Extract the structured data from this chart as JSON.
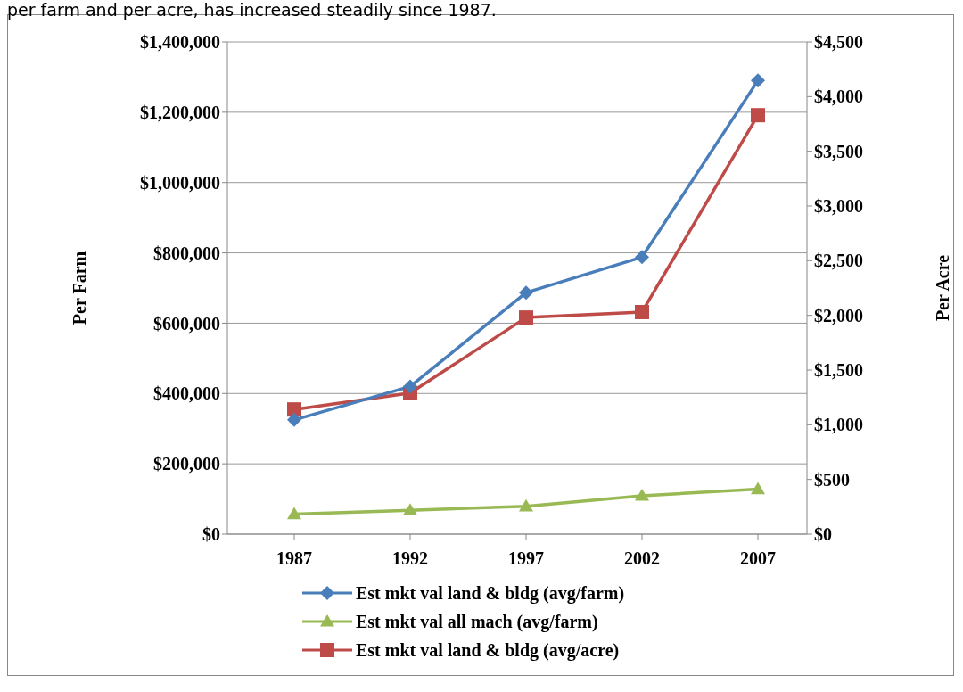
{
  "chart_data": {
    "type": "line",
    "annotations": [
      "per farm and per acre, has increased steadily since 1987."
    ],
    "ylabel": "Per Farm",
    "y2label": "Per Acre",
    "categories": [
      "1987",
      "1992",
      "1997",
      "2002",
      "2007"
    ],
    "series": [
      {
        "name": "Est mkt val land & bldg (avg/farm)",
        "color": "#4a7ebb",
        "marker": "diamond",
        "values": [
          325000,
          420000,
          687000,
          788000,
          1290000
        ]
      },
      {
        "name": "Est mkt val all mach (avg/farm)",
        "color": "#98b954",
        "marker": "triangle",
        "values": [
          57000,
          68000,
          79000,
          109000,
          128000
        ]
      },
      {
        "name": "Est mkt val land & bldg (avg/acre)",
        "color": "#be4b48",
        "marker": "square",
        "axis": "y2",
        "values": [
          1140,
          1290,
          1980,
          2030,
          3830
        ]
      }
    ],
    "ylim": [
      0,
      1400000
    ],
    "yticks": [
      {
        "value": 0,
        "label": "$0"
      },
      {
        "value": 200000,
        "label": "$200,000"
      },
      {
        "value": 400000,
        "label": "$400,000"
      },
      {
        "value": 600000,
        "label": "$600,000"
      },
      {
        "value": 800000,
        "label": "$800,000"
      },
      {
        "value": 1000000,
        "label": "$1,000,000"
      },
      {
        "value": 1200000,
        "label": "$1,200,000"
      },
      {
        "value": 1400000,
        "label": "$1,400,000"
      }
    ],
    "y2lim": [
      0,
      4500
    ],
    "y2ticks": [
      {
        "value": 0,
        "label": "$0"
      },
      {
        "value": 500,
        "label": "$500"
      },
      {
        "value": 1000,
        "label": "$1,000"
      },
      {
        "value": 1500,
        "label": "$1,500"
      },
      {
        "value": 2000,
        "label": "$2,000"
      },
      {
        "value": 2500,
        "label": "$2,500"
      },
      {
        "value": 3000,
        "label": "$3,000"
      },
      {
        "value": 3500,
        "label": "$3,500"
      },
      {
        "value": 4000,
        "label": "$4,000"
      },
      {
        "value": 4500,
        "label": "$4,500"
      }
    ],
    "grid": "y",
    "legend": "bottom"
  }
}
